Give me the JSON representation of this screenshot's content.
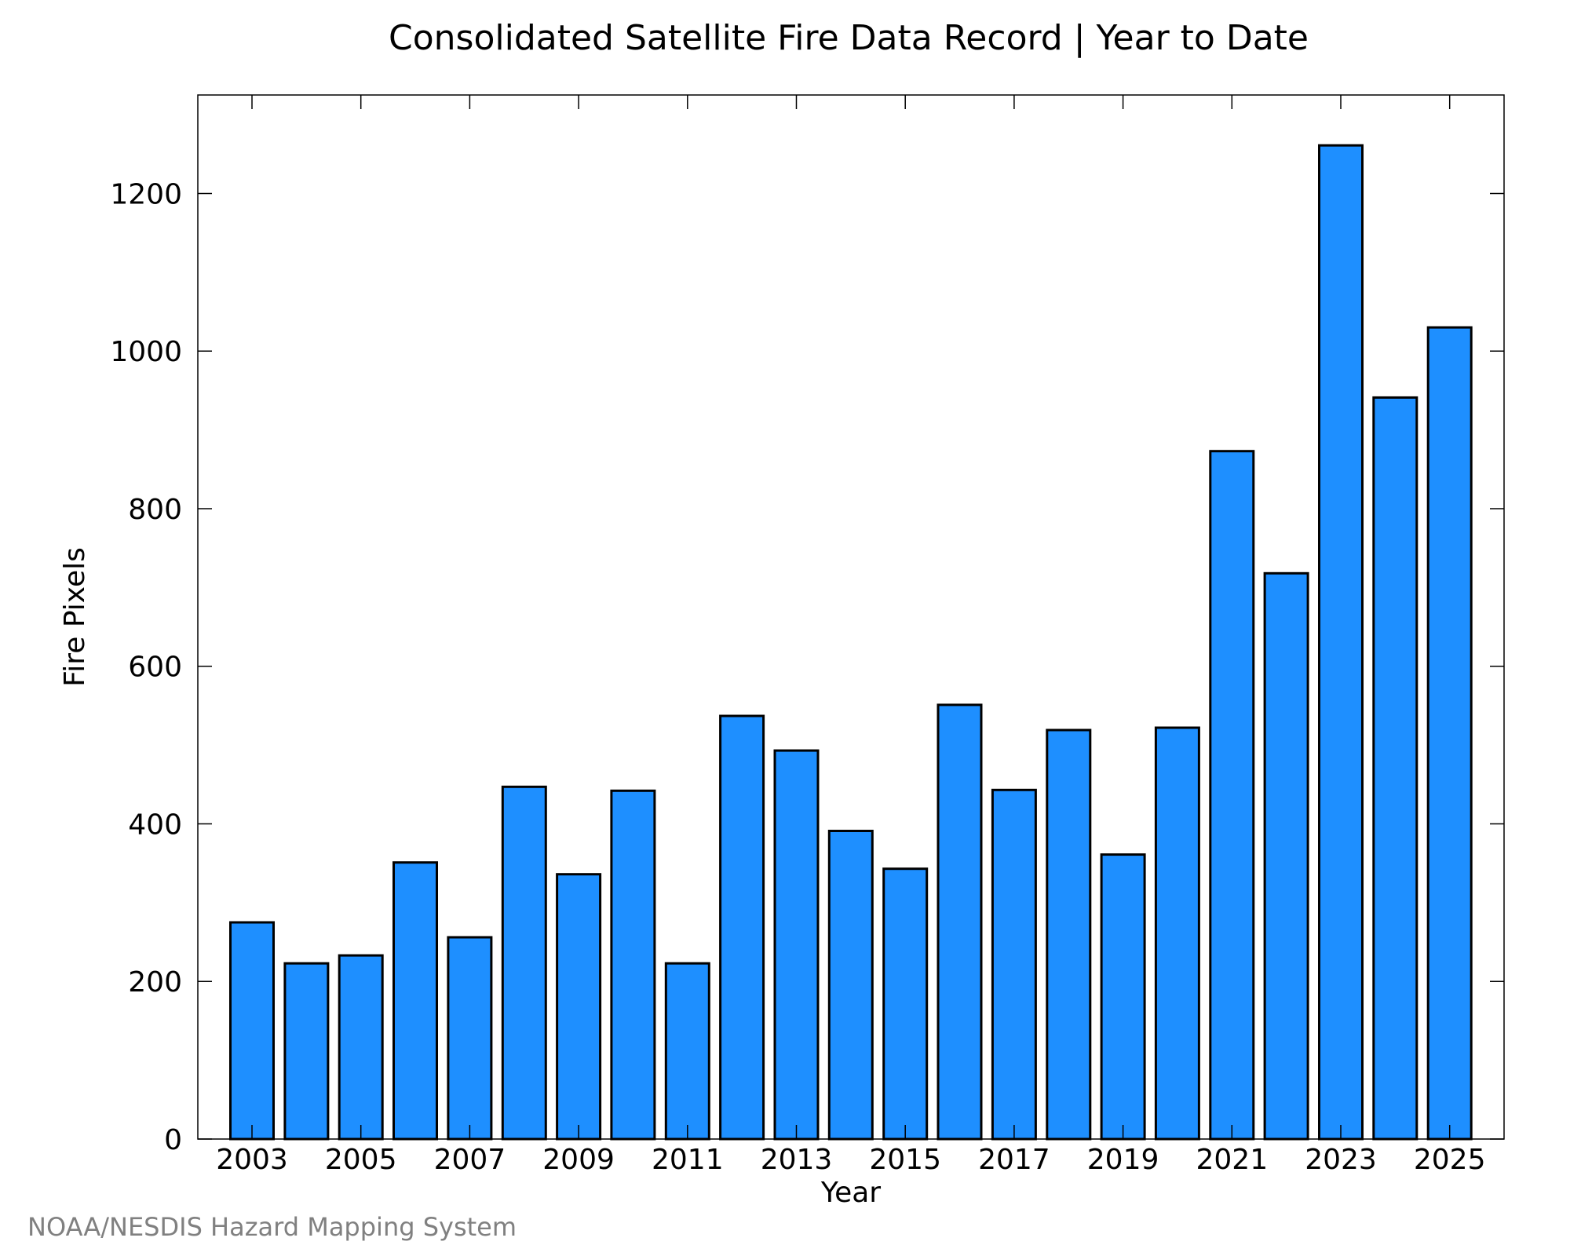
{
  "colors": {
    "bar": "#1E8FFF",
    "credit": "#808080"
  },
  "credit": "NOAA/NESDIS Hazard Mapping System",
  "chart_data": {
    "type": "bar",
    "title": "Consolidated Satellite Fire Data Record | Year to Date",
    "xlabel": "Year",
    "ylabel": "Fire Pixels",
    "categories": [
      "2003",
      "2004",
      "2005",
      "2006",
      "2007",
      "2008",
      "2009",
      "2010",
      "2011",
      "2012",
      "2013",
      "2014",
      "2015",
      "2016",
      "2017",
      "2018",
      "2019",
      "2020",
      "2021",
      "2022",
      "2023",
      "2024",
      "2025"
    ],
    "values": [
      275,
      223,
      233,
      351,
      256,
      447,
      336,
      442,
      223,
      537,
      493,
      391,
      343,
      551,
      443,
      519,
      361,
      522,
      873,
      718,
      1261,
      941,
      1030
    ],
    "ylim": [
      0,
      1325
    ],
    "yticks": [
      0,
      200,
      400,
      600,
      800,
      1000,
      1200
    ],
    "xtick_labels": [
      "2003",
      "2005",
      "2007",
      "2009",
      "2011",
      "2013",
      "2015",
      "2017",
      "2019",
      "2021",
      "2023",
      "2025"
    ],
    "grid": false,
    "legend": "none"
  }
}
